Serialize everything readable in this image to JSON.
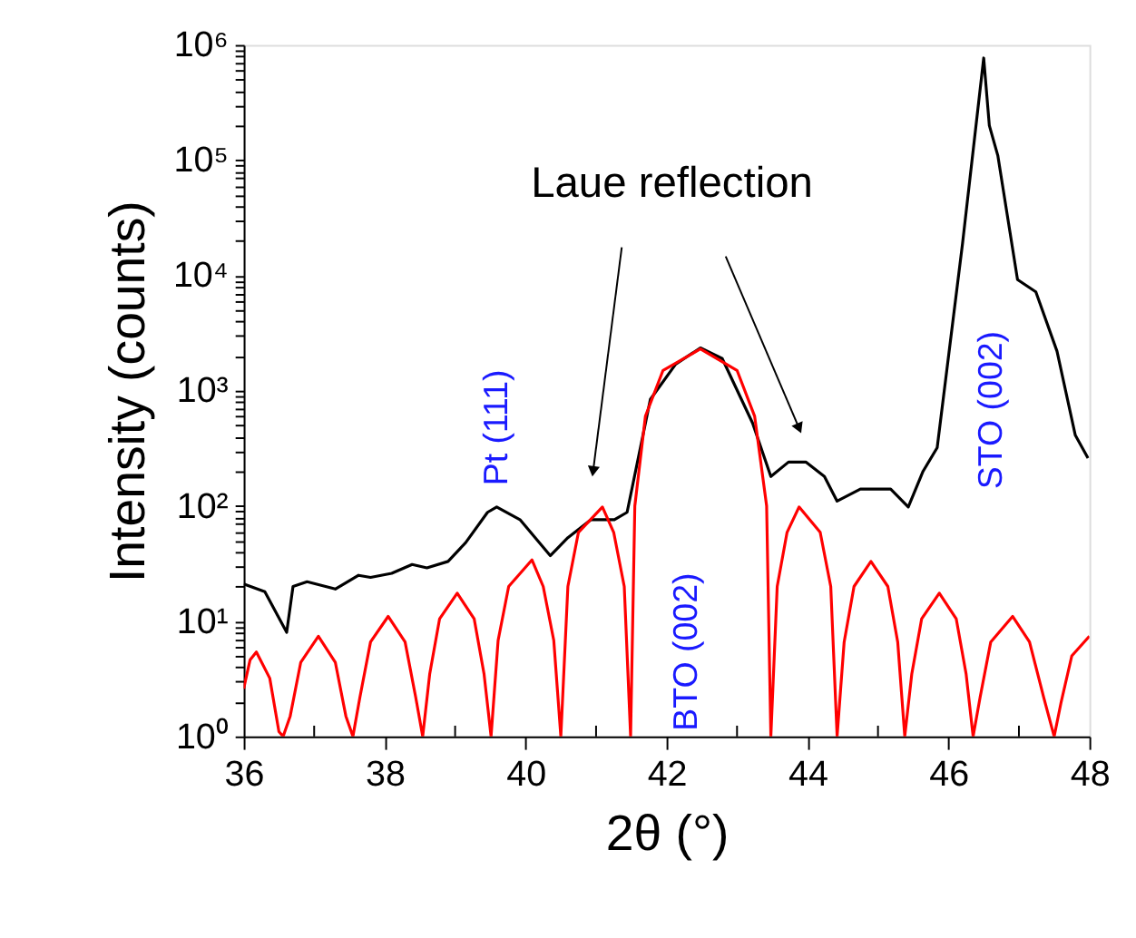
{
  "chart_data": {
    "type": "line",
    "xlabel": "2θ (°)",
    "ylabel": "Intensity (counts)",
    "log": "y",
    "grid": false,
    "xlim": [
      36,
      48
    ],
    "xticks": [
      36,
      {
        "value": 37,
        "label": null
      },
      38,
      {
        "value": 39,
        "label": null
      },
      40,
      {
        "value": 41,
        "label": null
      },
      42,
      {
        "value": 43,
        "label": null
      },
      44,
      {
        "value": 45,
        "label": null
      },
      46,
      {
        "value": 47,
        "label": null
      },
      48
    ],
    "ylim": [
      1,
      1000000
    ],
    "yticks": [
      {
        "value": 1,
        "label": "10⁰"
      },
      {
        "value": 2,
        "label": null
      },
      {
        "value": 3,
        "label": null
      },
      {
        "value": 4,
        "label": null
      },
      {
        "value": 5,
        "label": null
      },
      {
        "value": 6,
        "label": null
      },
      {
        "value": 7,
        "label": null
      },
      {
        "value": 8,
        "label": null
      },
      {
        "value": 9,
        "label": null
      },
      {
        "value": 10,
        "label": "10¹"
      },
      {
        "value": 20,
        "label": null
      },
      {
        "value": 30,
        "label": null
      },
      {
        "value": 40,
        "label": null
      },
      {
        "value": 50,
        "label": null
      },
      {
        "value": 60,
        "label": null
      },
      {
        "value": 70,
        "label": null
      },
      {
        "value": 80,
        "label": null
      },
      {
        "value": 90,
        "label": null
      },
      {
        "value": 100,
        "label": "10²"
      },
      {
        "value": 200,
        "label": null
      },
      {
        "value": 300,
        "label": null
      },
      {
        "value": 400,
        "label": null
      },
      {
        "value": 500,
        "label": null
      },
      {
        "value": 600,
        "label": null
      },
      {
        "value": 700,
        "label": null
      },
      {
        "value": 800,
        "label": null
      },
      {
        "value": 900,
        "label": null
      },
      {
        "value": 1000,
        "label": "10³"
      },
      {
        "value": 2000,
        "label": null
      },
      {
        "value": 3000,
        "label": null
      },
      {
        "value": 4000,
        "label": null
      },
      {
        "value": 5000,
        "label": null
      },
      {
        "value": 6000,
        "label": null
      },
      {
        "value": 7000,
        "label": null
      },
      {
        "value": 8000,
        "label": null
      },
      {
        "value": 9000,
        "label": null
      },
      {
        "value": 10000,
        "label": "10⁴"
      },
      {
        "value": 20000,
        "label": null
      },
      {
        "value": 30000,
        "label": null
      },
      {
        "value": 40000,
        "label": null
      },
      {
        "value": 50000,
        "label": null
      },
      {
        "value": 60000,
        "label": null
      },
      {
        "value": 70000,
        "label": null
      },
      {
        "value": 80000,
        "label": null
      },
      {
        "value": 90000,
        "label": null
      },
      {
        "value": 100000,
        "label": "10⁵"
      },
      {
        "value": 200000,
        "label": null
      },
      {
        "value": 300000,
        "label": null
      },
      {
        "value": 400000,
        "label": null
      },
      {
        "value": 500000,
        "label": null
      },
      {
        "value": 600000,
        "label": null
      },
      {
        "value": 700000,
        "label": null
      },
      {
        "value": 800000,
        "label": null
      },
      {
        "value": 900000,
        "label": null
      },
      {
        "value": 1000000,
        "label": "10⁶"
      }
    ],
    "series": [
      {
        "color": "#000000",
        "x": [
          36.0,
          36.3,
          36.61,
          36.7,
          36.9,
          37.3,
          37.63,
          37.8,
          38.1,
          38.39,
          38.6,
          38.9,
          39.15,
          39.46,
          39.59,
          39.92,
          40.35,
          40.6,
          40.93,
          41.26,
          41.44,
          41.77,
          42.13,
          42.48,
          42.79,
          43.22,
          43.48,
          43.73,
          43.98,
          44.24,
          44.42,
          44.75,
          45.18,
          45.43,
          45.64,
          45.84,
          46.2,
          46.5,
          46.58,
          46.7,
          46.98,
          47.24,
          47.54,
          47.8,
          47.98
        ],
        "values": [
          21,
          18,
          8,
          20,
          22,
          19,
          25,
          24,
          26,
          31,
          29,
          33,
          48,
          88,
          98,
          76,
          37,
          53,
          76,
          76,
          88,
          840,
          1700,
          2350,
          1900,
          525,
          180,
          240,
          240,
          180,
          110,
          140,
          140,
          98,
          200,
          320,
          19000,
          770000,
          200000,
          110000,
          9200,
          7200,
          2200,
          410,
          260
        ]
      },
      {
        "color": "#ff0000",
        "x": [
          36.0,
          36.09,
          36.18,
          36.37,
          36.5,
          36.56,
          36.66,
          36.81,
          37.06,
          37.3,
          37.45,
          37.55,
          37.65,
          37.8,
          38.05,
          38.29,
          38.44,
          38.54,
          38.64,
          38.78,
          39.03,
          39.27,
          39.41,
          39.51,
          39.61,
          39.76,
          40.09,
          40.25,
          40.4,
          40.5,
          40.6,
          40.75,
          41.09,
          41.25,
          41.4,
          41.49,
          41.55,
          41.7,
          41.95,
          42.48,
          43.0,
          43.25,
          43.42,
          43.48,
          43.57,
          43.71,
          43.88,
          44.18,
          44.33,
          44.42,
          44.52,
          44.66,
          44.9,
          45.14,
          45.28,
          45.38,
          45.48,
          45.62,
          45.87,
          46.11,
          46.25,
          46.35,
          46.45,
          46.6,
          46.91,
          47.15,
          47.35,
          47.5,
          47.6,
          47.75,
          48.0
        ],
        "values": [
          2.6,
          4.6,
          5.4,
          3.2,
          1.1,
          1,
          1.5,
          4.4,
          7.4,
          4.4,
          1.5,
          1,
          2.2,
          6.6,
          11,
          6.6,
          2.2,
          1,
          3.5,
          10.5,
          17.5,
          10.5,
          3.5,
          1,
          6.8,
          20,
          34,
          20,
          6.8,
          1,
          20,
          59,
          98,
          59,
          20,
          1,
          100,
          600,
          1500,
          2300,
          1500,
          600,
          100,
          1,
          20,
          59,
          98,
          59,
          20,
          1,
          6.6,
          20,
          33,
          20,
          6.6,
          1,
          3.5,
          10.5,
          17.5,
          10.5,
          3.5,
          1,
          2.2,
          6.6,
          11,
          6.6,
          2.2,
          1,
          2,
          5,
          7.4
        ]
      }
    ],
    "annotations": [
      "Laue reflection",
      "Pt (111)",
      "BTO (002)",
      "STO (002)"
    ]
  }
}
